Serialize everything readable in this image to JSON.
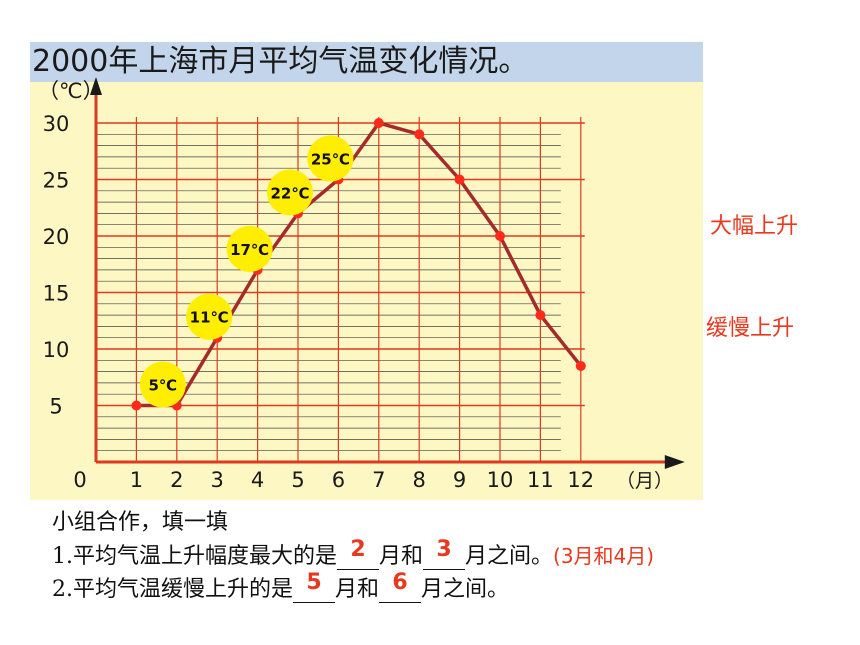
{
  "chart_data": {
    "type": "line",
    "title": "2000年上海市月平均气温变化情况。",
    "ylabel": "（℃）",
    "xlabel": "（月）",
    "x": [
      1,
      2,
      3,
      4,
      5,
      6,
      7,
      8,
      9,
      10,
      11,
      12
    ],
    "y": [
      5,
      5,
      11,
      17,
      22,
      25,
      30,
      29,
      25,
      20,
      13,
      8.5
    ],
    "x_ticks": [
      "0",
      "1",
      "2",
      "3",
      "4",
      "5",
      "6",
      "7",
      "8",
      "9",
      "10",
      "11",
      "12"
    ],
    "y_ticks": [
      "5",
      "10",
      "15",
      "20",
      "25",
      "30"
    ],
    "xlim": [
      0,
      12
    ],
    "ylim": [
      0,
      30
    ],
    "grid": true,
    "annotations": [
      {
        "month": 2,
        "label": "5℃"
      },
      {
        "month": 3,
        "label": "11℃"
      },
      {
        "month": 4,
        "label": "17℃"
      },
      {
        "month": 5,
        "label": "22℃"
      },
      {
        "month": 6,
        "label": "25℃"
      }
    ],
    "colors": {
      "line": "#a52a2a",
      "point": "#ff2a1a",
      "grid": "#dd3a20",
      "axis": "#1a1a1a",
      "bubble": "#ffee00",
      "panel": "#fdf7c4",
      "title_bar": "#c3d5ea"
    }
  },
  "notes": {
    "large_rise": "大幅上升",
    "slow_rise": "缓慢上升"
  },
  "task": {
    "heading": "小组合作，填一填",
    "q1_prefix": "1.平均气温上升幅度最大的是",
    "q1_answer1": "2",
    "q1_mid": "月和",
    "q1_answer2": "3",
    "q1_suffix": "月之间。",
    "q1_hint": "(3月和4月)",
    "q2_prefix": "2.平均气温缓慢上升的是",
    "q2_answer1": "5",
    "q2_mid": "月和",
    "q2_answer2": "6",
    "q2_suffix": "月之间。"
  }
}
